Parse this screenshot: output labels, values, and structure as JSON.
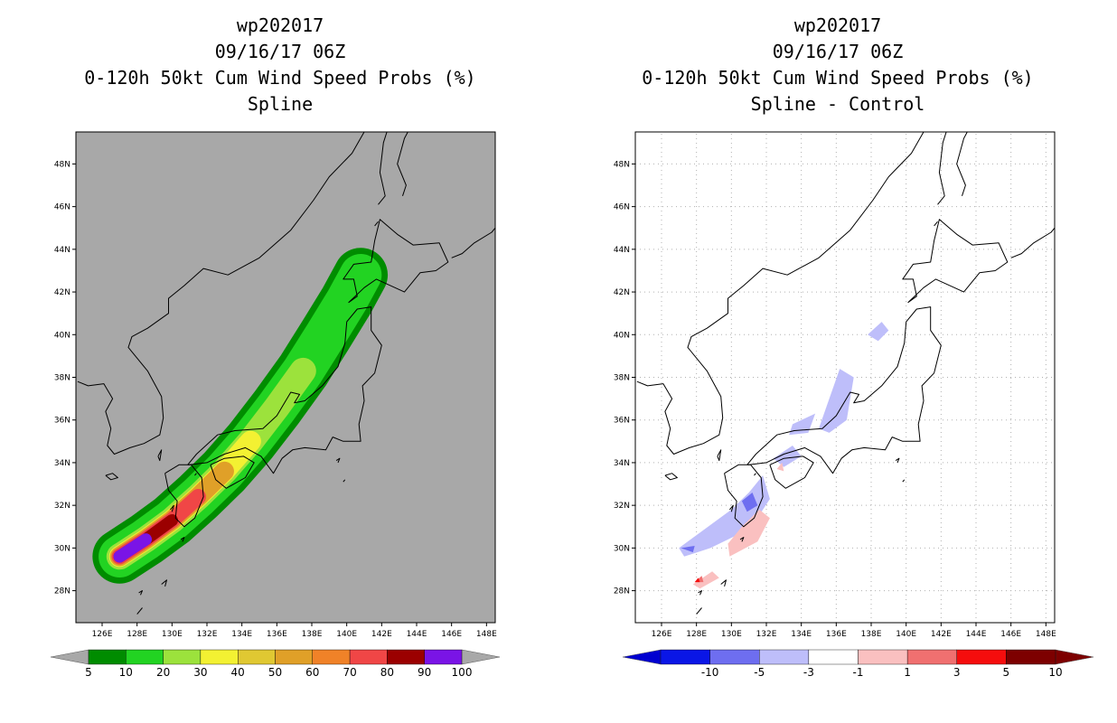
{
  "left_panel": {
    "storm_id": "wp202017",
    "datetime": "09/16/17 06Z",
    "product": "0-120h 50kt Cum Wind Speed Probs (%)",
    "subtitle": "Spline"
  },
  "right_panel": {
    "storm_id": "wp202017",
    "datetime": "09/16/17 06Z",
    "product": "0-120h 50kt Cum Wind Speed Probs (%)",
    "subtitle": "Spline - Control"
  },
  "map": {
    "lon_range": [
      124.5,
      148.5
    ],
    "lat_range": [
      26.5,
      49.5
    ],
    "lon_ticks": [
      "126E",
      "128E",
      "130E",
      "132E",
      "134E",
      "136E",
      "138E",
      "140E",
      "142E",
      "144E",
      "146E",
      "148E"
    ],
    "lat_ticks": [
      "28N",
      "30N",
      "32N",
      "34N",
      "36N",
      "38N",
      "40N",
      "42N",
      "44N",
      "46N",
      "48N"
    ],
    "left_background": "#a8a8a8",
    "right_background": "#ffffff"
  },
  "left_colorbar": {
    "labels": [
      "5",
      "10",
      "20",
      "30",
      "40",
      "50",
      "60",
      "70",
      "80",
      "90",
      "100"
    ],
    "colors": [
      "#008c00",
      "#22d322",
      "#9ce23c",
      "#f3f132",
      "#e0c832",
      "#e0a028",
      "#f08228",
      "#f04646",
      "#9b0000",
      "#7a14e6"
    ]
  },
  "right_colorbar": {
    "labels": [
      "-10",
      "-5",
      "-3",
      "-1",
      "1",
      "3",
      "5",
      "10"
    ],
    "colors": [
      "#0000d0",
      "#0a16e6",
      "#6e6ef0",
      "#bebefa",
      "#ffffff",
      "#fac0c0",
      "#f07070",
      "#f50d0d",
      "#7d0000"
    ]
  },
  "prob_swath": {
    "track": [
      [
        127,
        29.6
      ],
      [
        128.5,
        30.4
      ],
      [
        130,
        31.3
      ],
      [
        131.5,
        32.4
      ],
      [
        133,
        33.6
      ],
      [
        134.5,
        35.0
      ],
      [
        136,
        36.6
      ],
      [
        137.5,
        38.3
      ],
      [
        138.8,
        40.0
      ],
      [
        140,
        41.6
      ],
      [
        140.8,
        42.8
      ]
    ],
    "bands": [
      {
        "value": 5,
        "color": "#008c00",
        "halfwidth": 1.55,
        "start": 0,
        "end": 10
      },
      {
        "value": 10,
        "color": "#22d322",
        "halfwidth": 1.2,
        "start": 0,
        "end": 10
      },
      {
        "value": 20,
        "color": "#9ce23c",
        "halfwidth": 0.75,
        "start": 0,
        "end": 7
      },
      {
        "value": 30,
        "color": "#f3f132",
        "halfwidth": 0.6,
        "start": 0,
        "end": 5
      },
      {
        "value": 50,
        "color": "#e0a028",
        "halfwidth": 0.55,
        "start": 0,
        "end": 4
      },
      {
        "value": 70,
        "color": "#f04646",
        "halfwidth": 0.45,
        "start": 0,
        "end": 2.2
      },
      {
        "value": 80,
        "color": "#9b0000",
        "halfwidth": 0.35,
        "start": 0,
        "end": 2
      },
      {
        "value": 100,
        "color": "#7a14e6",
        "halfwidth": 0.35,
        "start": 0,
        "end": 0.8
      }
    ]
  },
  "diff_patches": [
    {
      "value": -1,
      "color": "#bebefa",
      "pts": [
        [
          135,
          35.6
        ],
        [
          136.2,
          38.4
        ],
        [
          137.0,
          38.0
        ],
        [
          136.6,
          36.0
        ],
        [
          135.6,
          35.4
        ]
      ]
    },
    {
      "value": -1,
      "color": "#bebefa",
      "pts": [
        [
          133.5,
          35.8
        ],
        [
          134.8,
          36.3
        ],
        [
          134.4,
          35.4
        ],
        [
          133.3,
          35.3
        ]
      ]
    },
    {
      "value": -1,
      "color": "#bebefa",
      "pts": [
        [
          137.8,
          40.0
        ],
        [
          138.6,
          40.6
        ],
        [
          139.0,
          40.2
        ],
        [
          138.4,
          39.7
        ]
      ]
    },
    {
      "value": -1,
      "color": "#bebefa",
      "pts": [
        [
          132.4,
          34.2
        ],
        [
          133.5,
          34.8
        ],
        [
          134.0,
          34.3
        ],
        [
          133.0,
          33.8
        ]
      ]
    },
    {
      "value": -1,
      "color": "#bebefa",
      "pts": [
        [
          127.0,
          30.0
        ],
        [
          128.5,
          30.9
        ],
        [
          130.0,
          31.8
        ],
        [
          131.0,
          32.6
        ],
        [
          131.8,
          33.4
        ],
        [
          132.2,
          32.3
        ],
        [
          131.4,
          31.3
        ],
        [
          130.3,
          30.6
        ],
        [
          128.8,
          30.0
        ],
        [
          127.3,
          29.6
        ]
      ]
    },
    {
      "value": -3,
      "color": "#6e6ef0",
      "pts": [
        [
          130.6,
          32.2
        ],
        [
          131.2,
          32.6
        ],
        [
          131.5,
          32.0
        ],
        [
          130.9,
          31.7
        ]
      ]
    },
    {
      "value": -3,
      "color": "#6e6ef0",
      "pts": [
        [
          127.1,
          30.0
        ],
        [
          127.9,
          30.1
        ],
        [
          127.8,
          29.8
        ]
      ]
    },
    {
      "value": 1,
      "color": "#fac0c0",
      "pts": [
        [
          129.9,
          29.6
        ],
        [
          131.5,
          30.3
        ],
        [
          132.2,
          31.4
        ],
        [
          131.6,
          31.8
        ],
        [
          130.6,
          31.0
        ],
        [
          129.8,
          30.2
        ]
      ]
    },
    {
      "value": 1,
      "color": "#fac0c0",
      "pts": [
        [
          127.8,
          28.3
        ],
        [
          128.9,
          28.9
        ],
        [
          129.3,
          28.6
        ],
        [
          128.2,
          28.1
        ]
      ]
    },
    {
      "value": 3,
      "color": "#f07070",
      "pts": [
        [
          127.9,
          28.4
        ],
        [
          128.3,
          28.7
        ],
        [
          128.4,
          28.4
        ]
      ]
    },
    {
      "value": 5,
      "color": "#f50d0d",
      "pts": [
        [
          127.9,
          28.4
        ],
        [
          128.1,
          28.6
        ],
        [
          128.2,
          28.4
        ]
      ]
    },
    {
      "value": 1,
      "color": "#fac0c0",
      "pts": [
        [
          132.6,
          33.7
        ],
        [
          132.9,
          34.0
        ],
        [
          133.0,
          33.6
        ]
      ]
    }
  ]
}
